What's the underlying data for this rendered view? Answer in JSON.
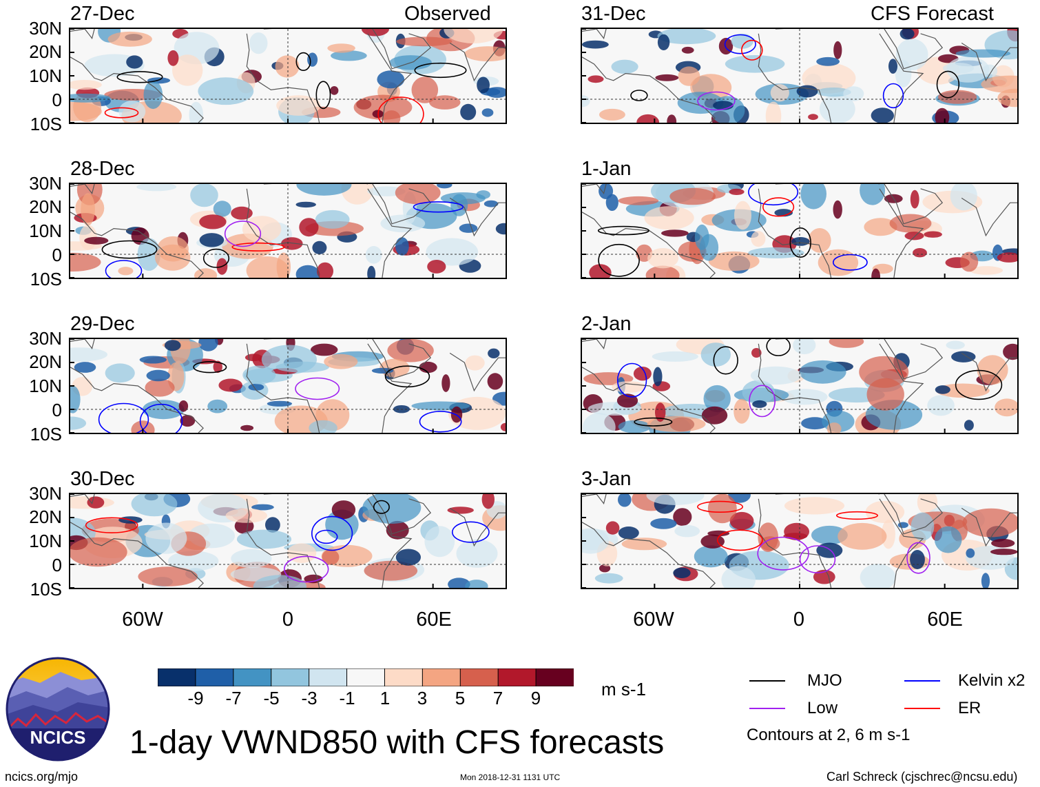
{
  "header": {
    "observed_label": "Observed",
    "forecast_label": "CFS Forecast"
  },
  "panels": {
    "observed": [
      "27-Dec",
      "28-Dec",
      "29-Dec",
      "30-Dec"
    ],
    "forecast": [
      "31-Dec",
      "1-Jan",
      "2-Jan",
      "3-Jan"
    ]
  },
  "axes": {
    "lat_ticks": [
      "30N",
      "20N",
      "10N",
      "0",
      "10S"
    ],
    "lon_ticks": [
      "60W",
      "0",
      "60E"
    ]
  },
  "colorbar": {
    "colors": [
      "#08306b",
      "#1f5fa8",
      "#4393c3",
      "#92c5de",
      "#d1e5f0",
      "#f7f7f7",
      "#fddbc7",
      "#f4a582",
      "#d6604d",
      "#b2182b",
      "#67001f"
    ],
    "ticks": [
      "-9",
      "-7",
      "-5",
      "-3",
      "-1",
      "1",
      "3",
      "5",
      "7",
      "9"
    ],
    "units": "m s-1"
  },
  "legend": {
    "items": [
      {
        "label": "MJO",
        "color": "#000000"
      },
      {
        "label": "Kelvin x2",
        "color": "#0000ff"
      },
      {
        "label": "Low",
        "color": "#a020f0"
      },
      {
        "label": "ER",
        "color": "#ff0000"
      }
    ],
    "contour_note": "Contours at 2, 6 m s-1"
  },
  "title": "1-day VWND850 with CFS forecasts",
  "footer": {
    "logo_text": "NCICS",
    "website": "ncics.org/mjo",
    "timestamp": "Mon 2018-12-31 1131 UTC",
    "author": "Carl Schreck (cjschrec@ncsu.edu)"
  }
}
